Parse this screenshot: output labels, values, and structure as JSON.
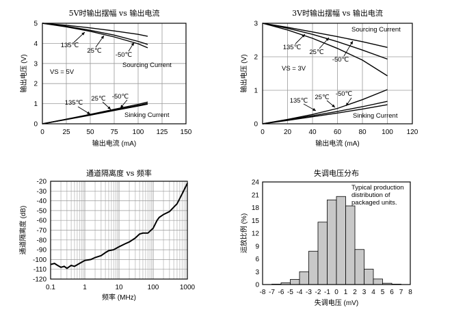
{
  "chart_data": [
    {
      "type": "line",
      "title": "5V时输出摆幅 vs 输出电流",
      "xlabel": "输出电流 (mA)",
      "ylabel": "输出电压 (V)",
      "xlim": [
        0,
        150
      ],
      "ylim": [
        0,
        5
      ],
      "xticks": [
        "0",
        "25",
        "50",
        "75",
        "100",
        "125",
        "150"
      ],
      "yticks": [
        "0",
        "1",
        "2",
        "3",
        "4",
        "5"
      ],
      "grid": true,
      "note": "VS = 5V",
      "labels": {
        "sourcing": "Sourcing Current",
        "sinking": "Sinking Current"
      },
      "series": [
        {
          "name": "135℃",
          "group": "sourcing",
          "x": [
            0,
            25,
            50,
            75,
            100,
            110
          ],
          "y": [
            5.0,
            4.82,
            4.6,
            4.32,
            3.98,
            3.78
          ]
        },
        {
          "name": "25℃",
          "group": "sourcing",
          "x": [
            0,
            25,
            50,
            75,
            100,
            110
          ],
          "y": [
            5.0,
            4.85,
            4.65,
            4.41,
            4.1,
            3.95
          ]
        },
        {
          "name": "-50℃",
          "group": "sourcing",
          "x": [
            0,
            25,
            50,
            75,
            100,
            110
          ],
          "y": [
            5.0,
            4.9,
            4.77,
            4.62,
            4.45,
            4.35
          ]
        },
        {
          "name": "135℃",
          "group": "sinking",
          "x": [
            0,
            25,
            50,
            75,
            100,
            110
          ],
          "y": [
            0.0,
            0.23,
            0.47,
            0.72,
            0.97,
            1.08
          ]
        },
        {
          "name": "25℃",
          "group": "sinking",
          "x": [
            0,
            25,
            50,
            75,
            100,
            110
          ],
          "y": [
            0.0,
            0.22,
            0.45,
            0.68,
            0.92,
            1.02
          ]
        },
        {
          "name": "-50℃",
          "group": "sinking",
          "x": [
            0,
            25,
            50,
            75,
            100,
            110
          ],
          "y": [
            0.0,
            0.21,
            0.43,
            0.66,
            0.88,
            0.98
          ]
        }
      ]
    },
    {
      "type": "line",
      "title": "3V时输出摆幅 vs 输出电流",
      "xlabel": "输出电流 (mA)",
      "ylabel": "输出电压 (V)",
      "xlim": [
        0,
        120
      ],
      "ylim": [
        0,
        3
      ],
      "xticks": [
        "0",
        "20",
        "40",
        "60",
        "80",
        "100",
        "120"
      ],
      "yticks": [
        "0",
        "1",
        "2",
        "3"
      ],
      "grid": true,
      "note": "VS = 3V",
      "labels": {
        "sourcing": "Sourcing Current",
        "sinking": "Sinking Current"
      },
      "series": [
        {
          "name": "135℃",
          "group": "sourcing",
          "x": [
            0,
            20,
            40,
            60,
            80,
            100
          ],
          "y": [
            3.0,
            2.8,
            2.55,
            2.25,
            1.9,
            1.43
          ]
        },
        {
          "name": "25℃",
          "group": "sourcing",
          "x": [
            0,
            20,
            40,
            60,
            80,
            100
          ],
          "y": [
            3.0,
            2.85,
            2.67,
            2.45,
            2.2,
            1.93
          ]
        },
        {
          "name": "-50℃",
          "group": "sourcing",
          "x": [
            0,
            20,
            40,
            60,
            80,
            100
          ],
          "y": [
            3.0,
            2.88,
            2.74,
            2.6,
            2.45,
            2.28
          ]
        },
        {
          "name": "135℃",
          "group": "sinking",
          "x": [
            0,
            20,
            40,
            60,
            80,
            100
          ],
          "y": [
            0.0,
            0.13,
            0.28,
            0.46,
            0.72,
            1.02
          ]
        },
        {
          "name": "25℃",
          "group": "sinking",
          "x": [
            0,
            20,
            40,
            60,
            80,
            100
          ],
          "y": [
            0.0,
            0.12,
            0.24,
            0.37,
            0.51,
            0.67
          ]
        },
        {
          "name": "-50℃",
          "group": "sinking",
          "x": [
            0,
            20,
            40,
            60,
            80,
            100
          ],
          "y": [
            0.0,
            0.1,
            0.21,
            0.32,
            0.44,
            0.57
          ]
        }
      ]
    },
    {
      "type": "line",
      "title": "通道隔离度 vs 频率",
      "xlabel": "频率 (MHz)",
      "ylabel": "通道隔离度 (dB)",
      "xscale": "log",
      "xlim": [
        0.1,
        1000
      ],
      "ylim": [
        -120,
        -20
      ],
      "xticks": [
        "0.1",
        "1",
        "10",
        "100",
        "1000"
      ],
      "yticks": [
        "-20",
        "-30",
        "-40",
        "-50",
        "-60",
        "-70",
        "-80",
        "-90",
        "-100",
        "-110",
        "-120"
      ],
      "grid": true,
      "series": [
        {
          "name": "",
          "x": [
            0.1,
            0.13,
            0.16,
            0.2,
            0.25,
            0.3,
            0.4,
            0.5,
            0.7,
            1,
            1.5,
            2,
            3,
            4,
            5,
            7,
            10,
            15,
            20,
            30,
            40,
            50,
            70,
            100,
            130,
            150,
            200,
            300,
            500,
            700,
            1000
          ],
          "y": [
            -105,
            -104,
            -106,
            -108,
            -107,
            -109,
            -106,
            -107,
            -104,
            -101,
            -100,
            -98,
            -96,
            -93,
            -91,
            -90,
            -87,
            -84,
            -82,
            -78,
            -74,
            -73,
            -73,
            -68,
            -60,
            -57,
            -54,
            -51,
            -43,
            -33,
            -22
          ]
        }
      ]
    },
    {
      "type": "bar",
      "title": "失调电压分布",
      "xlabel": "失调电压 (mV)",
      "ylabel": "运放比例 (%)",
      "xlim": [
        -8,
        8
      ],
      "ylim": [
        0,
        24
      ],
      "xticks": [
        "-8",
        "-7",
        "-6",
        "-5",
        "-4",
        "-3",
        "-2",
        "-1",
        "0",
        "1",
        "2",
        "3",
        "4",
        "5",
        "6",
        "7",
        "8"
      ],
      "yticks": [
        "0",
        "3",
        "6",
        "9",
        "12",
        "15",
        "18",
        "21",
        "24"
      ],
      "grid": false,
      "annotation": [
        "Typical production",
        "distribution of",
        "packaged units."
      ],
      "bins": [
        -7,
        -6,
        -5,
        -4,
        -3,
        -2,
        -1,
        0,
        1,
        2,
        3,
        4,
        5,
        6
      ],
      "values": [
        0.1,
        0.4,
        1.2,
        3.0,
        7.8,
        14.6,
        19.8,
        20.6,
        18.4,
        8.2,
        3.6,
        1.3,
        0.3,
        0.1
      ]
    }
  ]
}
